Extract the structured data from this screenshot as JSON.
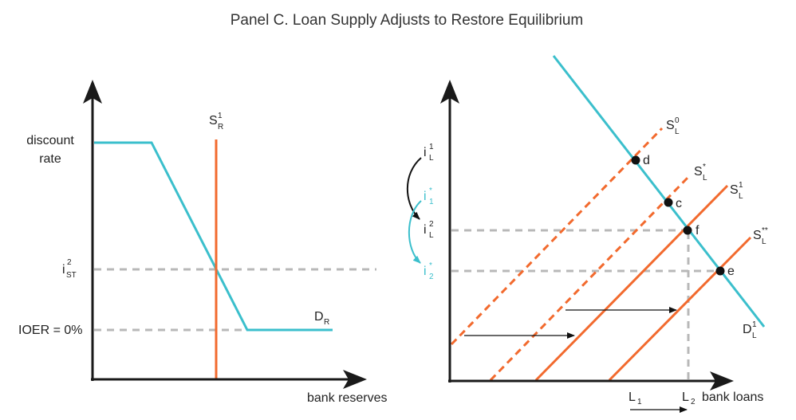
{
  "title": "Panel C. Loan Supply Adjusts to Restore Equilibrium",
  "left_panel": {
    "y_axis_label_line1": "discount",
    "y_axis_label_line2": "rate",
    "x_axis_label": "bank reserves",
    "rate_label_main": "i",
    "rate_label_sup": "2",
    "rate_label_sub": "ST",
    "ioer_label": "IOER = 0%",
    "supply_label_main": "S",
    "supply_label_sup": "1",
    "supply_label_sub": "R",
    "demand_label_main": "D",
    "demand_label_sub": "R"
  },
  "right_panel": {
    "x_axis_label": "bank loans",
    "l1_main": "L",
    "l1_sub": "1",
    "l2_main": "L",
    "l2_sub": "2",
    "sl0_main": "S",
    "sl0_sup": "0",
    "sl0_sub": "L",
    "slstar_main": "S",
    "slstar_sup": "*",
    "slstar_sub": "L",
    "sl1_main": "S",
    "sl1_sup": "1",
    "sl1_sub": "L",
    "slss_main": "S",
    "slss_sup": "**",
    "slss_sub": "L",
    "dl_main": "D",
    "dl_sup": "1",
    "dl_sub": "L",
    "point_d": "d",
    "point_c": "c",
    "point_f": "f",
    "point_e": "e",
    "il1_main": "i",
    "il1_sup": "1",
    "il1_sub": "L",
    "i1star_main": "i",
    "i1star_sup": "*",
    "i1star_sub": "1",
    "il2_main": "i",
    "il2_sup": "2",
    "il2_sub": "L",
    "i2star_main": "i",
    "i2star_sup": "*",
    "i2star_sub": "2"
  },
  "colors": {
    "axis": "#1a1a1a",
    "demand": "#3bbfcc",
    "supply": "#f26a2e",
    "guide": "#b8b8b8",
    "arrow_dark": "#111111"
  }
}
